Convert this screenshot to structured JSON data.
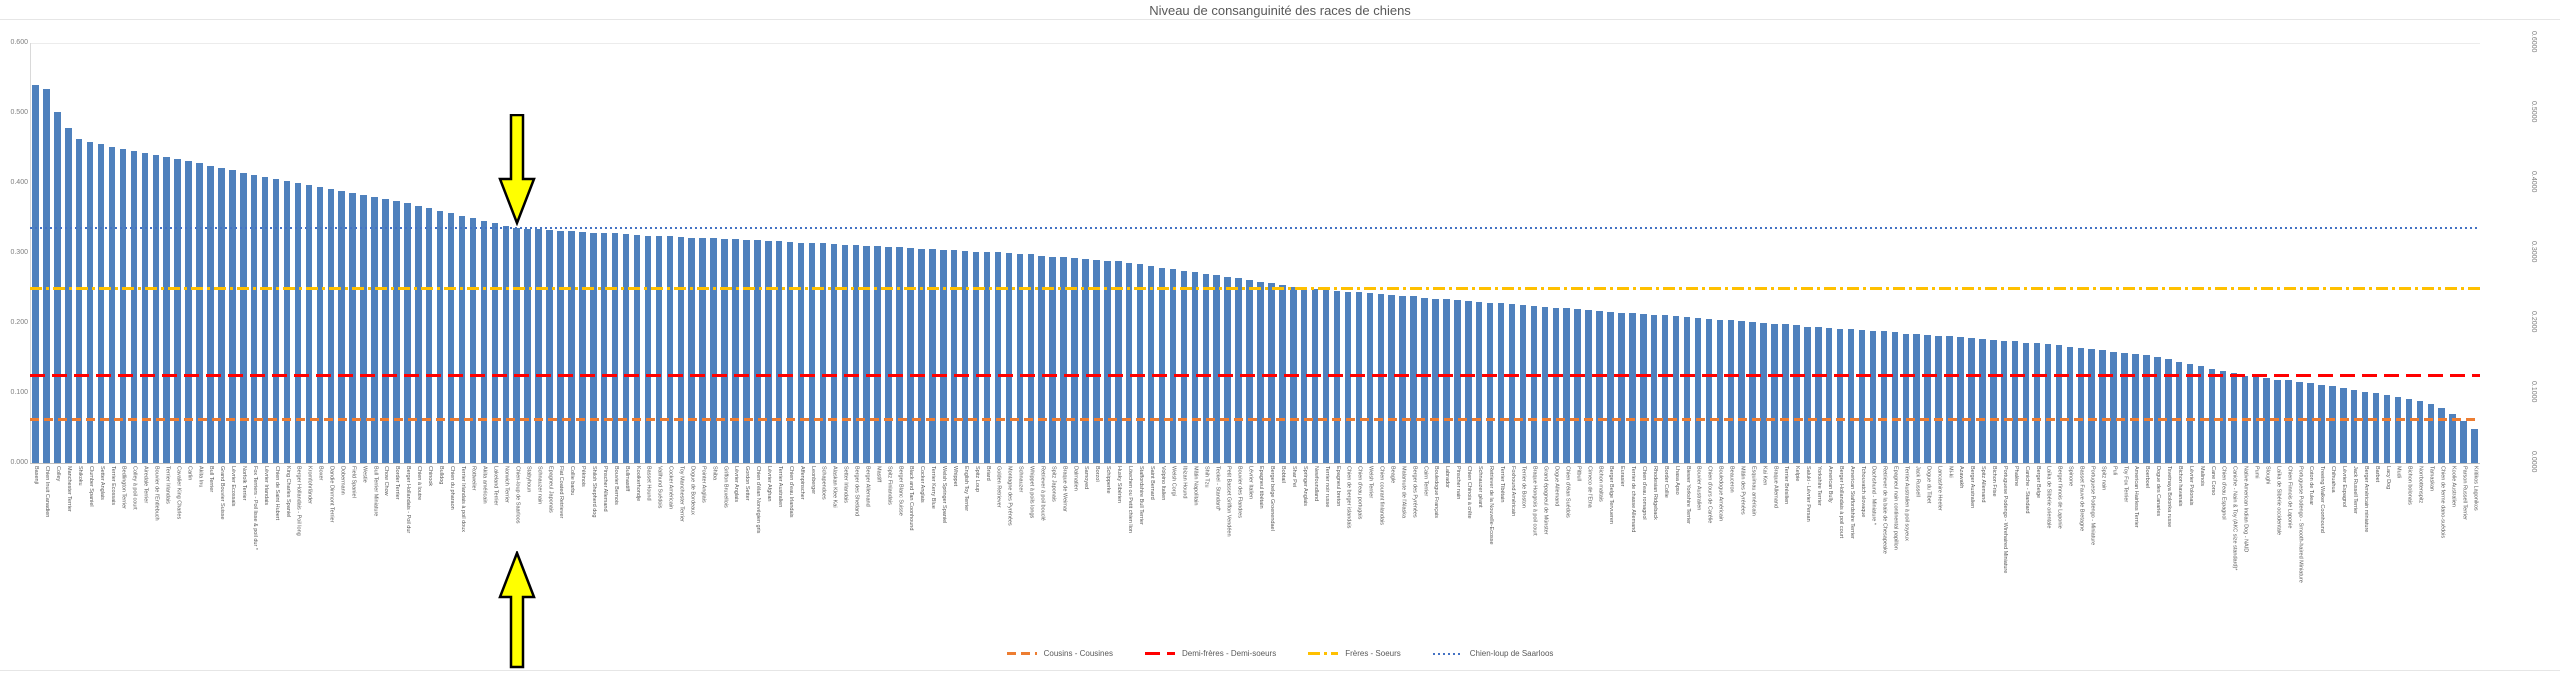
{
  "title": "Niveau de consanguinité des races de chiens",
  "chart_data": {
    "type": "bar",
    "title": "Niveau de consanguinité des races de chiens",
    "bar_color": "#4F81BD",
    "ylim": [
      0,
      0.6
    ],
    "grid": "minimal",
    "legend_position": "bottom",
    "left_axis_ticks": [
      "0.600",
      "0.500",
      "0.400",
      "0.300",
      "0.200",
      "0.100",
      "0.000"
    ],
    "right_axis_ticks": [
      "0.6000",
      "0.5000",
      "0.4000",
      "0.3000",
      "0.2000",
      "0.1000",
      "0.0000"
    ],
    "categories": [
      "Basenji",
      "Chien Inuit Canadien",
      "Colley",
      "Manchester Terrier",
      "Shikoku",
      "Clumber Spaniel",
      "Setter Anglais",
      "Terrier Ecossais",
      "Bedlington Terrier",
      "Colley à poil court",
      "Airedale Terrier",
      "Bouvier de l'Entlebuch",
      "Terrier Irlandais",
      "Cavalier King Charles",
      "Carlin",
      "Akita Inu",
      "Bull Terrier",
      "Grand Bouvier Suisse",
      "Lévrier Ecossais",
      "Norfolk Terrier",
      "Fox Terriers - Poil lisse & poil dur *",
      "Lévrier Irlandais",
      "Chien de Saint Hubert",
      "King Charles Spaniel",
      "Berger Hollandais - Poil long",
      "Kromfohrländer",
      "Boxer",
      "Dandie Dinmont Terrier",
      "Dobermann",
      "Field Spaniel",
      "Westie",
      "Bull Terrier Miniature",
      "Chow Chow",
      "Border Terrier",
      "Berger Hollandais - Poil dur",
      "Chien à loutre",
      "Chinook",
      "Bulldog",
      "Chien du pharaon",
      "Terrier Irlandais à poil doux",
      "Rottweiler",
      "Akita américain",
      "Lakeland Terrier",
      "Norwich Terrier",
      "Chien-loup de Saarloos",
      "Stabyhoun",
      "Schnauzer nain",
      "Epagneul Japonais",
      "Flat Coated Retriever",
      "Collie barbu",
      "Pékinois",
      "Shiloh Shepherd dog",
      "Pinscher Allemand",
      "Bouvier Bernois",
      "Bullmastiff",
      "Kooikerhondje",
      "Basset Hound",
      "Vallhund Suédois",
      "Cocker Américain",
      "Toy Manchester Terrier",
      "Dogue de Bordeaux",
      "Pointer Anglais",
      "Shiba",
      "Griffon Bruxellois",
      "Lévrier Anglais",
      "Gordon Setter",
      "Chien d'élan Norvégien gris",
      "Lévrier Afghan",
      "Terrier Australien",
      "Chien d'eau Irlandais",
      "Affenpinscher",
      "Leonberger",
      "Schapendoes",
      "Alaskan Klee Kai",
      "Setter Irlandais",
      "Berger des Shetland",
      "Berger Allemand",
      "Mastiff",
      "Spitz Finlandais",
      "Berger Blanc Suisse",
      "Black and Tan Coonhound",
      "Cocker Anglais",
      "Terrier Kerry Blue",
      "Welsh Springer Spaniel",
      "Whippet",
      "English Toy Terrier",
      "Spitz Loup",
      "Briard",
      "Golden Retriever",
      "Montagne des Pyrénées",
      "Schnauzer",
      "Whippet à poils longs",
      "Retriever à poil bouclé",
      "Spitz Japonais",
      "Braque de Weimar",
      "Dalmatien",
      "Samoyed",
      "Borzoï",
      "Schipperke",
      "Husky Sibérien",
      "Löwchen ou Petit chien lion",
      "Staffordshire Bull Terrier",
      "Saint Bernard",
      "Volpino Italien",
      "Welsh Corgi",
      "Ibizan Hound",
      "Mâtin Napolitain",
      "Shih Tzu",
      "Teckel - Standard*",
      "Petit Basset Griffon Vendéen",
      "Bouvier des Flandres",
      "Lévrier Italien",
      "Epagneul tibétain",
      "Berger belge Groenendael",
      "Bobtail",
      "Shar Pei",
      "Springer Anglais",
      "Newfoundland",
      "Terrier noir russe",
      "Epagneul breton",
      "Chien de berger islandais",
      "Chien d'eau portugais",
      "Welsh Terrier",
      "Chien courant finlandais",
      "Beagle",
      "Malamute de l'Alaska",
      "Berger des Pyrénées",
      "Cairn Terrier",
      "Bouledogue Français",
      "Labrador",
      "Pinscher nain",
      "Chien Chinois à crête",
      "Schnauzer géant",
      "Retriever de la Nouvelle-Ecosse",
      "Terrier Tibétain",
      "Foxhound Américain",
      "Terrier de Boston",
      "Braque Hongrois à poil court",
      "Grand épagneul de Münster",
      "Dogue Allemand",
      "Chien d'élan Suédois",
      "Pitbull",
      "Cirneco de l'Etna",
      "Bichon maltais",
      "Berger Belge Tervueren",
      "Eurasier",
      "Terrier de chasse Allemand",
      "Chien d'eau romagnol",
      "Rhodesian Ridgeback",
      "Border Collie",
      "Lhasa Apso",
      "Biewer Yorkshire Terrier",
      "Bouvier Australien",
      "Chien d'ours de Carélie",
      "Bouledogue Américain",
      "Beauceron",
      "Mâtin des Pyrénées",
      "Esquimau américain",
      "Kai Ken",
      "Braque Allemand",
      "Terrier Brésilien",
      "Kelpie",
      "Saluki - Lévrier Persan",
      "Yorkshire Terrier",
      "American Bully",
      "Berger Hollandais à poil court",
      "American Staffordshire Terrier",
      "Tchouvatch slovaque",
      "Dachshund - Miniature *",
      "Retriever de la baie de Chesapeake",
      "Epagneul nain continental papillon",
      "Terrier Australien à poil soyeux",
      "Jack Russell",
      "Dogue du Tibet",
      "Lancashire Heeler",
      "Mi-ki",
      "Azawakh",
      "Berger Australien",
      "Spitz Allemand",
      "Bichon Frise",
      "Portuguese Podengo - Wirehaired Miniature",
      "Phalène",
      "Caniche - Standard",
      "Berger Belge",
      "Laïka de Sibérie orientale",
      "Berger finnois de Laponie",
      "Spinone",
      "Basset Fauve de Bretagne",
      "Portuguese Podengo - Miniature",
      "Spitz nain",
      "Puli",
      "Toy Fox Terrier",
      "American Hairless Terrier",
      "Boerboel",
      "Dogue des Canaries",
      "Tsvetnaya Bolonka russe",
      "Bichon havanais",
      "Lévrier Polonais",
      "Malinois",
      "Cane Corso",
      "Chien d'eau Espagnol",
      "Caniche - Nain & Toy (AKC size standard)*",
      "Native American Indian Dog - NAID",
      "Pumi",
      "Sloughi",
      "Laïka de Sibérie occidentale",
      "Chien Finnois de Laponie",
      "Portuguese Podengo - Smooth-haired Miniature",
      "Coton de Tulear",
      "Treeing Walker Coonhound",
      "Chihuahua",
      "Lévrier Espagnol",
      "Jack Russell Terrier",
      "Berger Américain miniature",
      "Barbet",
      "Lacy Dog",
      "Mudi",
      "Bichon bolonais",
      "Norrbottenspitz",
      "Tamaskan",
      "Chien de ferme dano-suédois",
      "Koolie Australien",
      "Parson Russell Terrier",
      "Kritikos Lagonikos"
    ],
    "values": [
      0.54,
      0.534,
      0.501,
      0.478,
      0.463,
      0.459,
      0.456,
      0.452,
      0.449,
      0.446,
      0.443,
      0.44,
      0.437,
      0.434,
      0.431,
      0.428,
      0.425,
      0.421,
      0.418,
      0.414,
      0.411,
      0.408,
      0.406,
      0.403,
      0.4,
      0.397,
      0.394,
      0.392,
      0.389,
      0.386,
      0.383,
      0.38,
      0.377,
      0.374,
      0.371,
      0.367,
      0.364,
      0.36,
      0.357,
      0.353,
      0.35,
      0.346,
      0.343,
      0.339,
      0.336,
      0.335,
      0.334,
      0.333,
      0.332,
      0.331,
      0.33,
      0.329,
      0.329,
      0.328,
      0.327,
      0.326,
      0.325,
      0.325,
      0.324,
      0.323,
      0.322,
      0.322,
      0.321,
      0.32,
      0.32,
      0.319,
      0.318,
      0.317,
      0.317,
      0.316,
      0.315,
      0.314,
      0.314,
      0.313,
      0.312,
      0.311,
      0.31,
      0.31,
      0.309,
      0.308,
      0.307,
      0.306,
      0.306,
      0.305,
      0.304,
      0.303,
      0.302,
      0.302,
      0.301,
      0.3,
      0.299,
      0.298,
      0.296,
      0.295,
      0.294,
      0.293,
      0.292,
      0.29,
      0.289,
      0.288,
      0.286,
      0.284,
      0.281,
      0.279,
      0.277,
      0.275,
      0.273,
      0.27,
      0.268,
      0.266,
      0.264,
      0.261,
      0.259,
      0.257,
      0.255,
      0.252,
      0.25,
      0.249,
      0.248,
      0.246,
      0.245,
      0.244,
      0.243,
      0.241,
      0.24,
      0.239,
      0.238,
      0.236,
      0.235,
      0.234,
      0.233,
      0.232,
      0.23,
      0.229,
      0.228,
      0.227,
      0.226,
      0.224,
      0.223,
      0.222,
      0.221,
      0.22,
      0.218,
      0.217,
      0.216,
      0.215,
      0.214,
      0.213,
      0.212,
      0.211,
      0.21,
      0.208,
      0.207,
      0.206,
      0.205,
      0.204,
      0.203,
      0.201,
      0.2,
      0.199,
      0.198,
      0.197,
      0.195,
      0.194,
      0.193,
      0.192,
      0.191,
      0.19,
      0.189,
      0.188,
      0.187,
      0.185,
      0.184,
      0.183,
      0.182,
      0.181,
      0.18,
      0.178,
      0.177,
      0.176,
      0.175,
      0.174,
      0.172,
      0.171,
      0.17,
      0.168,
      0.166,
      0.165,
      0.163,
      0.161,
      0.159,
      0.157,
      0.156,
      0.154,
      0.152,
      0.149,
      0.145,
      0.142,
      0.139,
      0.135,
      0.132,
      0.128,
      0.125,
      0.123,
      0.121,
      0.119,
      0.118,
      0.116,
      0.114,
      0.112,
      0.11,
      0.107,
      0.105,
      0.102,
      0.1,
      0.097,
      0.095,
      0.092,
      0.089,
      0.085,
      0.078,
      0.07,
      0.06,
      0.048
    ],
    "reference_lines": [
      {
        "label": "Cousins - Cousines",
        "value": 0.0625,
        "color": "#ED7D31",
        "style": "dashed"
      },
      {
        "label": "Demi-frères - Demi-soeurs",
        "value": 0.125,
        "color": "#FF0000",
        "style": "dashed-long"
      },
      {
        "label": "Frères - Soeurs",
        "value": 0.25,
        "color": "#FFC000",
        "style": "dash-dot"
      },
      {
        "label": "Chien-loup de Saarloos",
        "value": 0.336,
        "color": "#4472C4",
        "style": "dotted"
      }
    ],
    "annotation": {
      "type": "double-arrow",
      "target": "Chien-loup de Saarloos",
      "fill": "#FFFF00",
      "outline": "#000000"
    }
  }
}
